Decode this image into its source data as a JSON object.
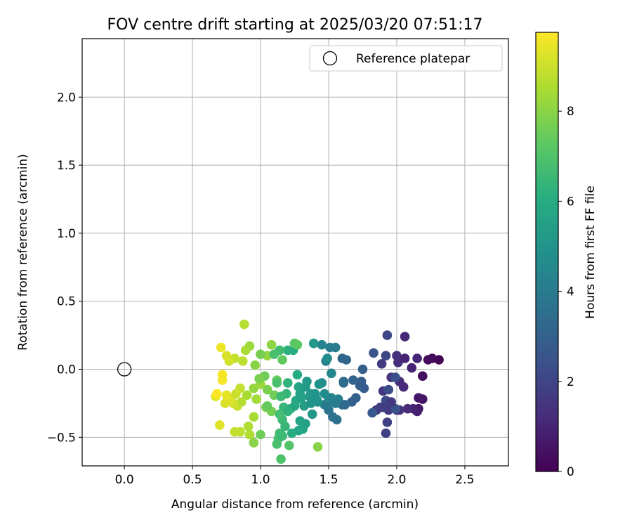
{
  "chart_data": {
    "type": "scatter",
    "title": "FOV centre drift starting at 2025/03/20 07:51:17",
    "xlabel": "Angular distance from reference (arcmin)",
    "ylabel": "Rotation from reference (arcmin)",
    "xlim": [
      -0.31,
      2.82
    ],
    "ylim": [
      -0.71,
      2.43
    ],
    "xticks": [
      0.0,
      0.5,
      1.0,
      1.5,
      2.0,
      2.5
    ],
    "xtick_labels": [
      "0.0",
      "0.5",
      "1.0",
      "1.5",
      "2.0",
      "2.5"
    ],
    "yticks": [
      -0.5,
      0.0,
      0.5,
      1.0,
      1.5,
      2.0
    ],
    "ytick_labels": [
      "−0.5",
      "0.0",
      "0.5",
      "1.0",
      "1.5",
      "2.0"
    ],
    "grid": true,
    "legend": {
      "placement": "top-right",
      "entries": [
        "Reference platepar"
      ]
    },
    "reference_point": {
      "x": 0.0,
      "y": 0.0
    },
    "colorbar": {
      "label": "Hours from first FF file",
      "range": [
        0,
        9.75
      ],
      "ticks": [
        0,
        2,
        4,
        6,
        8
      ],
      "tick_labels": [
        "0",
        "2",
        "4",
        "6",
        "8"
      ],
      "colormap": "viridis"
    },
    "series": [
      {
        "points": [
          [
            2.31,
            0.07,
            0.1
          ],
          [
            2.26,
            0.08,
            0.2
          ],
          [
            2.23,
            0.07,
            0.3
          ],
          [
            2.19,
            -0.05,
            0.4
          ],
          [
            2.19,
            -0.22,
            0.5
          ],
          [
            2.16,
            -0.21,
            0.6
          ],
          [
            2.16,
            -0.29,
            0.7
          ],
          [
            2.15,
            -0.31,
            0.8
          ],
          [
            2.12,
            -0.29,
            0.9
          ],
          [
            2.11,
            0.01,
            1.0
          ],
          [
            2.15,
            0.08,
            1.05
          ],
          [
            2.06,
            0.24,
            1.1
          ],
          [
            2.08,
            -0.29,
            1.15
          ],
          [
            2.05,
            -0.13,
            1.2
          ],
          [
            2.02,
            -0.09,
            1.25
          ],
          [
            2.01,
            0.05,
            1.3
          ],
          [
            2.0,
            0.1,
            1.35
          ],
          [
            2.0,
            -0.3,
            1.4
          ],
          [
            2.02,
            -0.3,
            1.45
          ],
          [
            1.96,
            -0.06,
            1.5
          ],
          [
            1.94,
            -0.3,
            1.55
          ],
          [
            1.9,
            -0.16,
            1.6
          ],
          [
            1.88,
            -0.28,
            1.65
          ],
          [
            1.89,
            0.04,
            1.7
          ],
          [
            1.85,
            -0.3,
            1.75
          ],
          [
            1.93,
            -0.39,
            1.85
          ],
          [
            1.92,
            -0.47,
            1.9
          ],
          [
            1.93,
            0.25,
            2.0
          ],
          [
            1.92,
            0.1,
            2.1
          ],
          [
            1.92,
            -0.23,
            2.2
          ],
          [
            1.94,
            -0.15,
            2.3
          ],
          [
            1.99,
            -0.06,
            2.4
          ],
          [
            1.99,
            -0.29,
            2.5
          ],
          [
            1.83,
            0.12,
            2.6
          ],
          [
            1.82,
            -0.32,
            2.7
          ],
          [
            1.76,
            -0.14,
            2.8
          ],
          [
            1.74,
            -0.09,
            2.9
          ],
          [
            1.75,
            0.0,
            3.0
          ],
          [
            1.67,
            -0.24,
            3.1
          ],
          [
            1.63,
            0.07,
            3.2
          ],
          [
            1.6,
            0.08,
            3.3
          ],
          [
            1.6,
            -0.26,
            3.4
          ],
          [
            1.61,
            -0.1,
            3.5
          ],
          [
            1.56,
            -0.37,
            3.6
          ],
          [
            1.53,
            -0.35,
            3.7
          ],
          [
            1.5,
            -0.3,
            3.8
          ],
          [
            1.49,
            -0.25,
            3.9
          ],
          [
            1.47,
            -0.26,
            4.0
          ],
          [
            1.55,
            0.16,
            4.1
          ],
          [
            1.51,
            0.16,
            4.2
          ],
          [
            1.48,
            0.06,
            4.3
          ],
          [
            1.45,
            0.18,
            4.4
          ],
          [
            1.52,
            -0.03,
            4.5
          ],
          [
            1.5,
            -0.21,
            4.6
          ],
          [
            1.49,
            0.08,
            4.7
          ],
          [
            1.45,
            -0.1,
            4.8
          ],
          [
            1.42,
            -0.24,
            4.9
          ],
          [
            1.4,
            -0.18,
            5.0
          ],
          [
            1.37,
            -0.18,
            5.1
          ],
          [
            1.38,
            -0.33,
            5.2
          ],
          [
            1.34,
            -0.09,
            5.3
          ],
          [
            1.32,
            -0.27,
            5.4
          ],
          [
            1.33,
            -0.4,
            5.5
          ],
          [
            1.31,
            -0.44,
            5.6
          ],
          [
            1.29,
            -0.38,
            5.7
          ],
          [
            1.28,
            -0.13,
            5.8
          ],
          [
            1.26,
            -0.23,
            5.9
          ],
          [
            1.27,
            -0.04,
            6.0
          ],
          [
            1.24,
            0.14,
            6.1
          ],
          [
            1.2,
            0.14,
            6.2
          ],
          [
            1.2,
            -0.1,
            6.3
          ],
          [
            1.19,
            -0.18,
            6.4
          ],
          [
            1.17,
            -0.28,
            6.5
          ],
          [
            1.16,
            -0.37,
            6.6
          ],
          [
            1.14,
            -0.47,
            6.7
          ],
          [
            1.13,
            -0.51,
            6.8
          ],
          [
            1.12,
            -0.55,
            6.9
          ],
          [
            1.15,
            -0.66,
            7.0
          ],
          [
            1.21,
            -0.56,
            7.1
          ],
          [
            1.25,
            0.19,
            7.2
          ],
          [
            1.27,
            0.18,
            7.3
          ],
          [
            1.16,
            0.07,
            7.4
          ],
          [
            1.12,
            -0.08,
            7.5
          ],
          [
            1.1,
            -0.19,
            7.6
          ],
          [
            1.08,
            -0.31,
            7.7
          ],
          [
            1.05,
            -0.15,
            7.8
          ],
          [
            1.04,
            -0.28,
            7.9
          ],
          [
            1.42,
            -0.57,
            8.0
          ],
          [
            1.08,
            0.18,
            8.1
          ],
          [
            1.05,
            0.1,
            8.2
          ],
          [
            1.0,
            -0.11,
            8.3
          ],
          [
            0.97,
            -0.22,
            8.4
          ],
          [
            0.95,
            -0.35,
            8.5
          ],
          [
            0.92,
            -0.48,
            8.6
          ],
          [
            0.88,
            0.33,
            8.7
          ],
          [
            0.87,
            0.06,
            8.8
          ],
          [
            0.85,
            -0.14,
            8.9
          ],
          [
            0.83,
            -0.27,
            9.0
          ],
          [
            0.78,
            -0.22,
            9.1
          ],
          [
            0.74,
            -0.25,
            9.2
          ],
          [
            0.7,
            -0.41,
            9.3
          ],
          [
            0.67,
            -0.2,
            9.4
          ],
          [
            0.71,
            0.16,
            9.55
          ],
          [
            0.72,
            -0.04,
            9.65
          ],
          [
            0.68,
            -0.18,
            9.7
          ],
          [
            1.39,
            0.19,
            5.2
          ],
          [
            1.33,
            -0.13,
            5.3
          ],
          [
            1.29,
            -0.18,
            5.6
          ],
          [
            1.43,
            -0.11,
            4.9
          ],
          [
            1.47,
            -0.18,
            4.7
          ],
          [
            1.57,
            -0.22,
            4.2
          ],
          [
            1.52,
            -0.21,
            4.4
          ],
          [
            1.36,
            -0.2,
            5.2
          ],
          [
            1.22,
            -0.29,
            6.0
          ],
          [
            1.25,
            -0.27,
            5.9
          ],
          [
            1.15,
            -0.2,
            6.6
          ],
          [
            1.12,
            -0.1,
            6.9
          ],
          [
            1.03,
            -0.05,
            7.6
          ],
          [
            0.95,
            -0.14,
            8.2
          ],
          [
            0.9,
            -0.19,
            8.5
          ],
          [
            0.86,
            -0.24,
            8.7
          ],
          [
            0.82,
            -0.18,
            9.0
          ],
          [
            0.8,
            -0.25,
            9.1
          ],
          [
            0.77,
            -0.23,
            9.3
          ],
          [
            0.75,
            -0.19,
            9.4
          ],
          [
            1.14,
            0.14,
            6.7
          ],
          [
            1.1,
            0.11,
            6.9
          ],
          [
            1.0,
            0.11,
            7.7
          ],
          [
            0.96,
            0.03,
            8.0
          ],
          [
            0.92,
            0.17,
            8.3
          ],
          [
            0.89,
            0.14,
            8.5
          ],
          [
            0.81,
            0.08,
            8.9
          ],
          [
            0.77,
            0.06,
            9.1
          ],
          [
            0.99,
            -0.07,
            7.8
          ],
          [
            1.18,
            -0.42,
            6.5
          ],
          [
            1.0,
            -0.48,
            7.6
          ],
          [
            0.95,
            -0.54,
            8.0
          ],
          [
            0.91,
            -0.42,
            8.6
          ],
          [
            0.85,
            -0.46,
            8.8
          ],
          [
            0.81,
            -0.46,
            8.9
          ],
          [
            0.72,
            -0.08,
            9.6
          ],
          [
            0.75,
            0.1,
            9.2
          ],
          [
            1.28,
            -0.45,
            5.8
          ],
          [
            1.23,
            -0.47,
            6.1
          ],
          [
            1.16,
            -0.49,
            6.6
          ],
          [
            1.05,
            -0.27,
            7.4
          ],
          [
            1.14,
            -0.33,
            6.8
          ],
          [
            1.2,
            -0.31,
            6.3
          ],
          [
            1.3,
            -0.21,
            5.6
          ],
          [
            1.37,
            -0.25,
            5.1
          ],
          [
            1.41,
            -0.22,
            5.0
          ],
          [
            1.55,
            -0.25,
            4.1
          ],
          [
            1.62,
            -0.26,
            3.4
          ],
          [
            1.7,
            -0.21,
            3.0
          ],
          [
            1.73,
            -0.12,
            2.9
          ],
          [
            1.61,
            -0.09,
            3.5
          ],
          [
            1.68,
            -0.08,
            3.2
          ],
          [
            1.9,
            -0.28,
            1.8
          ],
          [
            1.96,
            -0.24,
            1.7
          ],
          [
            2.06,
            0.08,
            1.0
          ]
        ]
      }
    ]
  }
}
